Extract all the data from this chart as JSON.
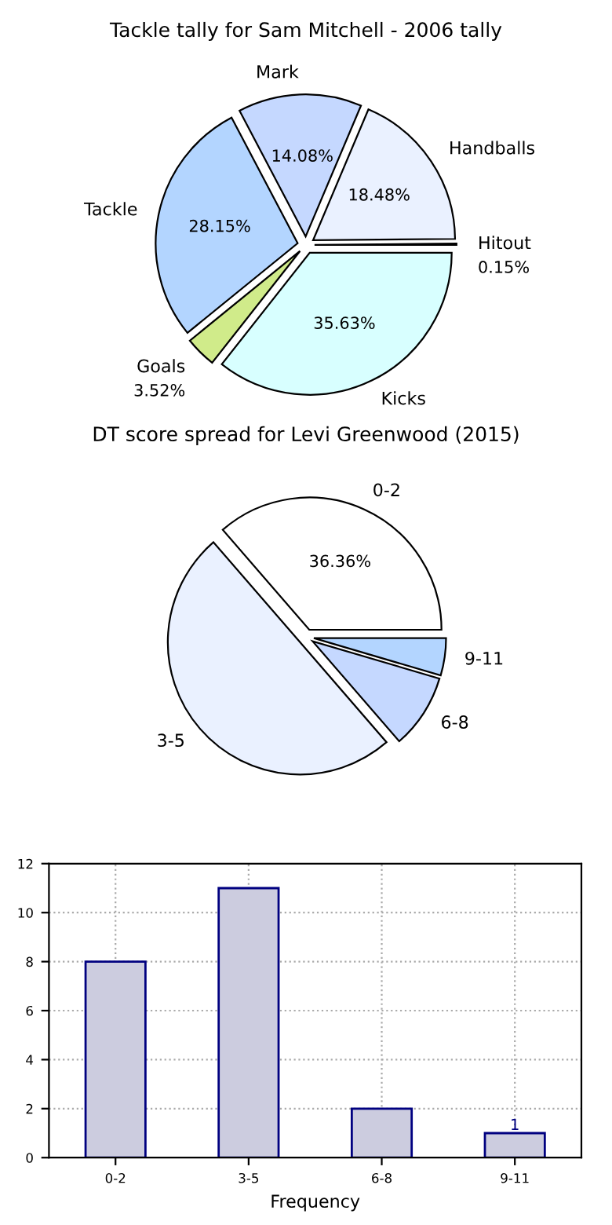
{
  "chart_data": [
    {
      "type": "pie",
      "title": "Tackle tally for Sam Mitchell - 2006 tally",
      "categories": [
        "Hitout",
        "Handballs",
        "Mark",
        "Tackle",
        "Goals",
        "Kicks"
      ],
      "values": [
        0.15,
        18.48,
        14.08,
        28.15,
        3.52,
        35.63
      ],
      "colors": [
        "#ffffff",
        "#eaf1ff",
        "#c5d8ff",
        "#b3d5ff",
        "#d0eb8a",
        "#d8ffff"
      ],
      "value_labels": [
        "0.15%",
        "18.48%",
        "14.08%",
        "28.15%",
        "3.52%",
        "35.63%"
      ]
    },
    {
      "type": "pie",
      "title": "DT score spread for Levi Greenwood (2015)",
      "categories": [
        "0-2",
        "3-5",
        "6-8",
        "9-11"
      ],
      "values": [
        36.36,
        50.0,
        9.09,
        4.55
      ],
      "colors": [
        "#ffffff",
        "#eaf1ff",
        "#c5d8ff",
        "#b3d5ff"
      ],
      "value_labels": [
        "36.36%",
        null,
        null,
        null
      ]
    },
    {
      "type": "bar",
      "xlabel": "Frequency",
      "categories": [
        "0-2",
        "3-5",
        "6-8",
        "9-11"
      ],
      "values": [
        8,
        11,
        2,
        1
      ],
      "color": "#ccccdf",
      "value_labels": [
        null,
        null,
        null,
        "1"
      ],
      "ylim": [
        0,
        12
      ],
      "yticks": [
        0,
        2,
        4,
        6,
        8,
        10,
        12
      ],
      "grid": true
    }
  ]
}
